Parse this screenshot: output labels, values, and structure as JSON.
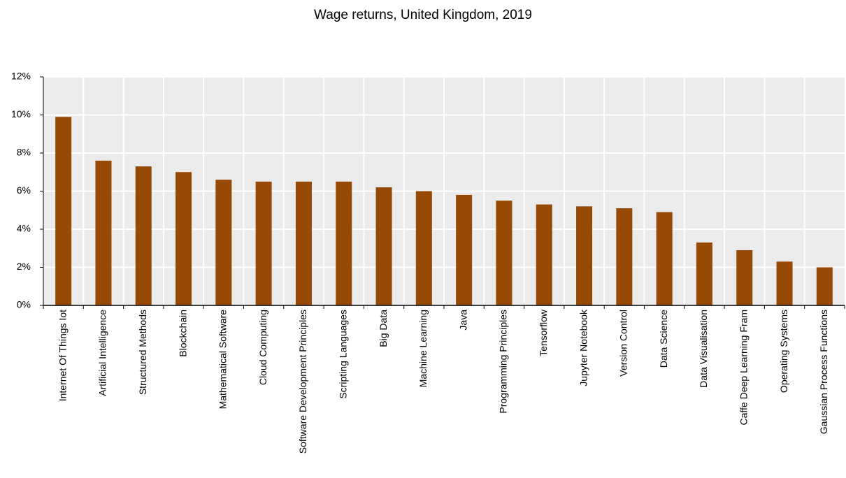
{
  "chart_data": {
    "type": "bar",
    "title": "Wage returns, United Kingdom, 2019",
    "categories": [
      "Internet Of Things Iot",
      "Artificial Intelligence",
      "Structured Methods",
      "Blockchain",
      "Mathematical Software",
      "Cloud Computing",
      "Software Development Principles",
      "Scripting Languages",
      "Big Data",
      "Machine Learning",
      "Java",
      "Programming Principles",
      "Tensorflow",
      "Jupyter Notebook",
      "Version Control",
      "Data Science",
      "Data Visualisation",
      "Caffe Deep Learning Fram",
      "Operating Systems",
      "Gaussian Process Functions"
    ],
    "values": [
      9.9,
      7.6,
      7.3,
      7.0,
      6.6,
      6.5,
      6.5,
      6.5,
      6.2,
      6.0,
      5.8,
      5.5,
      5.3,
      5.2,
      5.1,
      4.9,
      3.3,
      2.9,
      2.3,
      2.0
    ],
    "color": "#974a05",
    "ylim": [
      0,
      12
    ],
    "yticks": [
      {
        "value": 0,
        "label": "0%"
      },
      {
        "value": 2,
        "label": "2%"
      },
      {
        "value": 4,
        "label": "4%"
      },
      {
        "value": 6,
        "label": "6%"
      },
      {
        "value": 8,
        "label": "8%"
      },
      {
        "value": 10,
        "label": "10%"
      },
      {
        "value": 12,
        "label": "12%"
      }
    ],
    "grid": true
  }
}
